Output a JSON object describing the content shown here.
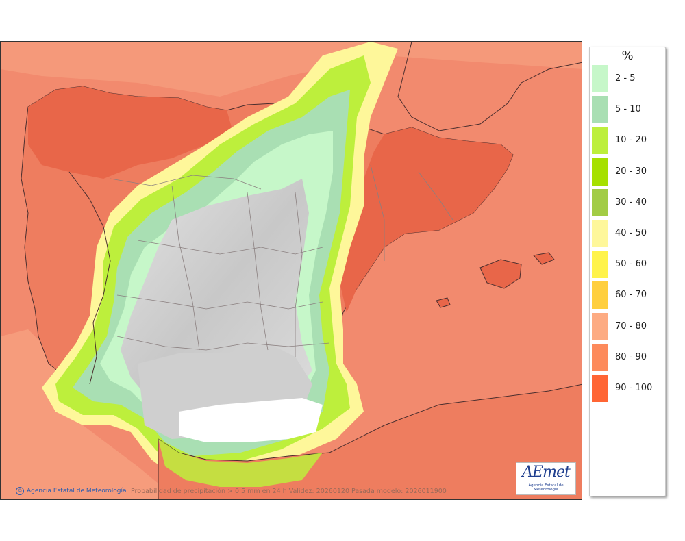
{
  "legend": {
    "unit": "%",
    "items": [
      {
        "label": "2 - 5",
        "color": "#c6f7c9"
      },
      {
        "label": "5 - 10",
        "color": "#a9dfb3"
      },
      {
        "label": "10 - 20",
        "color": "#bdef3c"
      },
      {
        "label": "20 - 30",
        "color": "#a6e000"
      },
      {
        "label": "30 - 40",
        "color": "#a2cc45"
      },
      {
        "label": "40 - 50",
        "color": "#fef79a"
      },
      {
        "label": "50 - 60",
        "color": "#fff34a"
      },
      {
        "label": "60 - 70",
        "color": "#ffcf3e"
      },
      {
        "label": "70 - 80",
        "color": "#fdab82"
      },
      {
        "label": "80 - 90",
        "color": "#fd8a5b"
      },
      {
        "label": "90 - 100",
        "color": "#ff6534"
      }
    ]
  },
  "map": {
    "credit": "Agencia Estatal de Meteorología",
    "caption": "Probabilidad de precipitación > 0.5 mm en 24 h Validez: 20260120 Pasada modelo: 2026011900",
    "logo_text": "AEmet",
    "logo_subtext": "Agencia Estatal de Meteorología",
    "colors": {
      "sea_base": "#f28a6e",
      "land_north": "#e8694a",
      "interior_gray": "#d4d4d4",
      "coast_line": "#4a2e2e",
      "admin_line": "#8a7f7f"
    }
  }
}
